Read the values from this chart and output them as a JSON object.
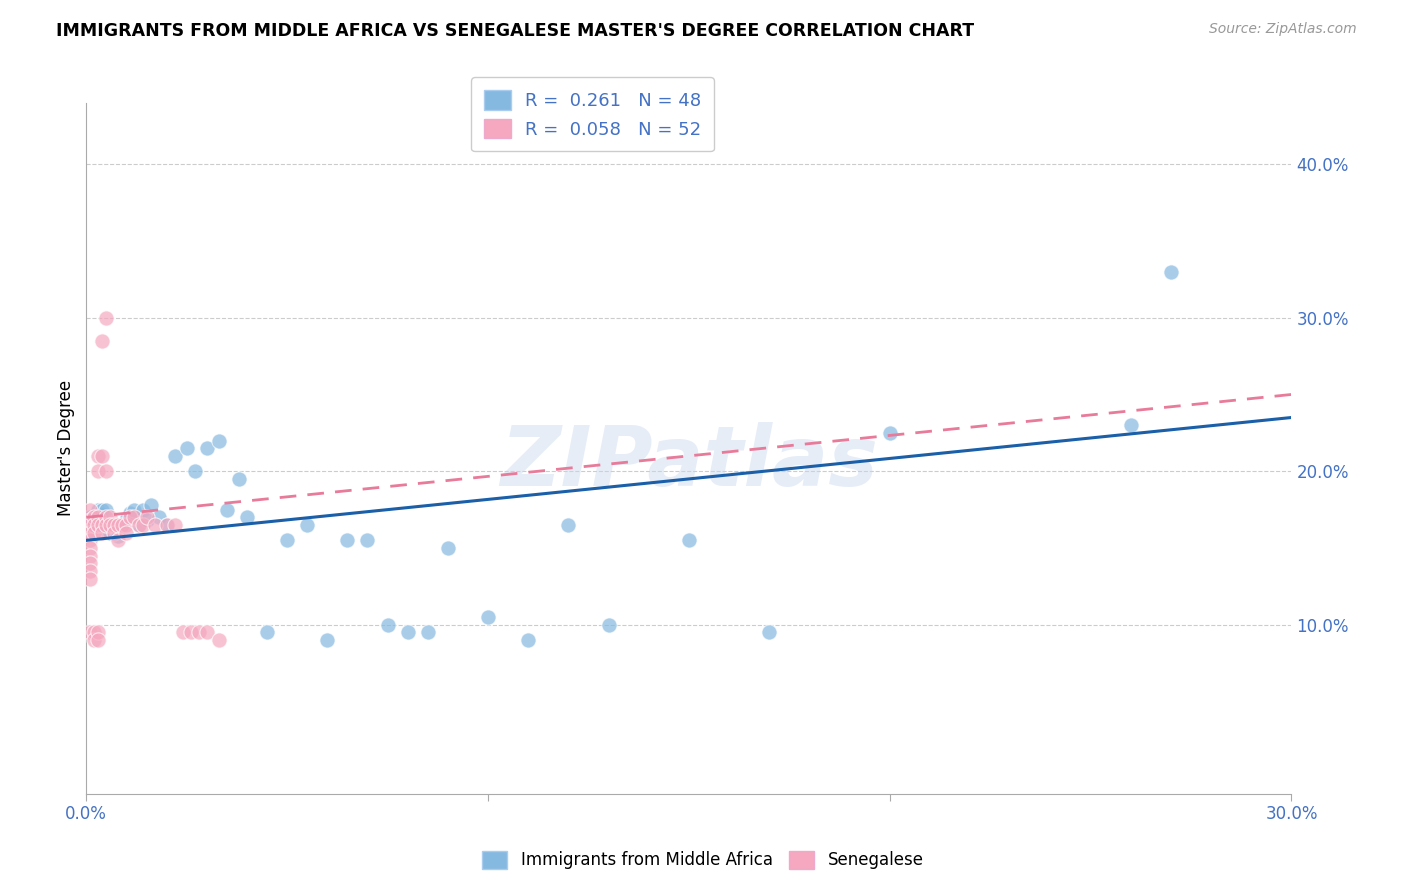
{
  "title": "IMMIGRANTS FROM MIDDLE AFRICA VS SENEGALESE MASTER'S DEGREE CORRELATION CHART",
  "source": "Source: ZipAtlas.com",
  "ylabel": "Master's Degree",
  "y_tick_labels": [
    "10.0%",
    "20.0%",
    "30.0%",
    "40.0%"
  ],
  "y_tick_values": [
    0.1,
    0.2,
    0.3,
    0.4
  ],
  "x_lim": [
    0.0,
    0.3
  ],
  "y_lim": [
    -0.01,
    0.44
  ],
  "legend_label1": "Immigrants from Middle Africa",
  "legend_label2": "Senegalese",
  "color_blue": "#85b9e0",
  "color_pink": "#f5a8bf",
  "trend_blue": "#1a5fa8",
  "trend_pink": "#e87a9a",
  "watermark": "ZIPatlas",
  "blue_x": [
    0.001,
    0.002,
    0.003,
    0.003,
    0.004,
    0.004,
    0.005,
    0.005,
    0.006,
    0.007,
    0.008,
    0.009,
    0.01,
    0.011,
    0.012,
    0.013,
    0.014,
    0.015,
    0.016,
    0.018,
    0.02,
    0.022,
    0.025,
    0.027,
    0.03,
    0.033,
    0.035,
    0.038,
    0.04,
    0.045,
    0.05,
    0.055,
    0.06,
    0.065,
    0.07,
    0.075,
    0.08,
    0.085,
    0.09,
    0.1,
    0.11,
    0.12,
    0.13,
    0.15,
    0.17,
    0.2,
    0.26,
    0.27
  ],
  "blue_y": [
    0.17,
    0.165,
    0.175,
    0.168,
    0.172,
    0.175,
    0.162,
    0.175,
    0.16,
    0.165,
    0.158,
    0.165,
    0.168,
    0.173,
    0.175,
    0.165,
    0.175,
    0.168,
    0.178,
    0.17,
    0.165,
    0.21,
    0.215,
    0.2,
    0.215,
    0.22,
    0.175,
    0.195,
    0.17,
    0.095,
    0.155,
    0.165,
    0.09,
    0.155,
    0.155,
    0.1,
    0.095,
    0.095,
    0.15,
    0.105,
    0.09,
    0.165,
    0.1,
    0.155,
    0.095,
    0.225,
    0.23,
    0.33
  ],
  "pink_x": [
    0.001,
    0.001,
    0.001,
    0.001,
    0.001,
    0.001,
    0.001,
    0.001,
    0.001,
    0.001,
    0.001,
    0.002,
    0.002,
    0.002,
    0.002,
    0.002,
    0.003,
    0.003,
    0.003,
    0.003,
    0.003,
    0.003,
    0.004,
    0.004,
    0.004,
    0.005,
    0.005,
    0.005,
    0.006,
    0.006,
    0.007,
    0.007,
    0.008,
    0.008,
    0.009,
    0.01,
    0.01,
    0.011,
    0.012,
    0.013,
    0.014,
    0.015,
    0.017,
    0.02,
    0.022,
    0.024,
    0.026,
    0.028,
    0.03,
    0.033,
    0.004,
    0.005
  ],
  "pink_y": [
    0.175,
    0.168,
    0.165,
    0.16,
    0.155,
    0.15,
    0.145,
    0.14,
    0.135,
    0.13,
    0.095,
    0.17,
    0.165,
    0.16,
    0.095,
    0.09,
    0.21,
    0.2,
    0.17,
    0.165,
    0.095,
    0.09,
    0.21,
    0.165,
    0.16,
    0.2,
    0.17,
    0.165,
    0.17,
    0.165,
    0.165,
    0.16,
    0.165,
    0.155,
    0.165,
    0.165,
    0.16,
    0.17,
    0.17,
    0.165,
    0.165,
    0.17,
    0.165,
    0.165,
    0.165,
    0.095,
    0.095,
    0.095,
    0.095,
    0.09,
    0.285,
    0.3
  ]
}
